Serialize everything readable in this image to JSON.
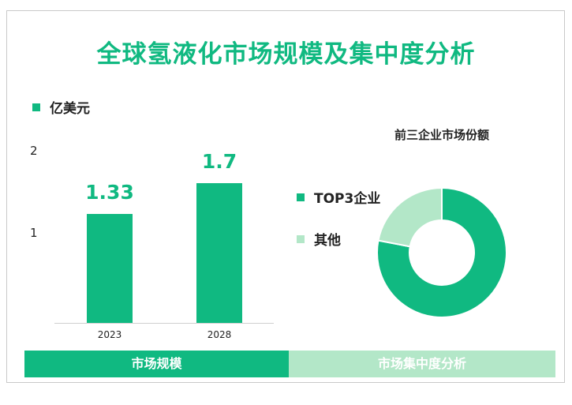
{
  "title": "全球氢液化市场规模及集中度分析",
  "chart_data": [
    {
      "type": "bar",
      "legend": [
        "亿美元"
      ],
      "categories": [
        "2023",
        "2028"
      ],
      "values": [
        1.33,
        1.7
      ],
      "value_labels": [
        "1.33",
        "1.7"
      ],
      "yticks": [
        "1",
        "2"
      ],
      "ylim": [
        0,
        2.2
      ],
      "color": "#10b981"
    },
    {
      "type": "pie",
      "title": "前三企业市场份额",
      "labels": [
        "TOP3企业",
        "其他"
      ],
      "values": [
        78,
        22
      ],
      "colors": [
        "#10b981",
        "#b3e7c8"
      ],
      "donut": true
    }
  ],
  "tabs": {
    "left": "市场规模",
    "right": "市场集中度分析"
  }
}
